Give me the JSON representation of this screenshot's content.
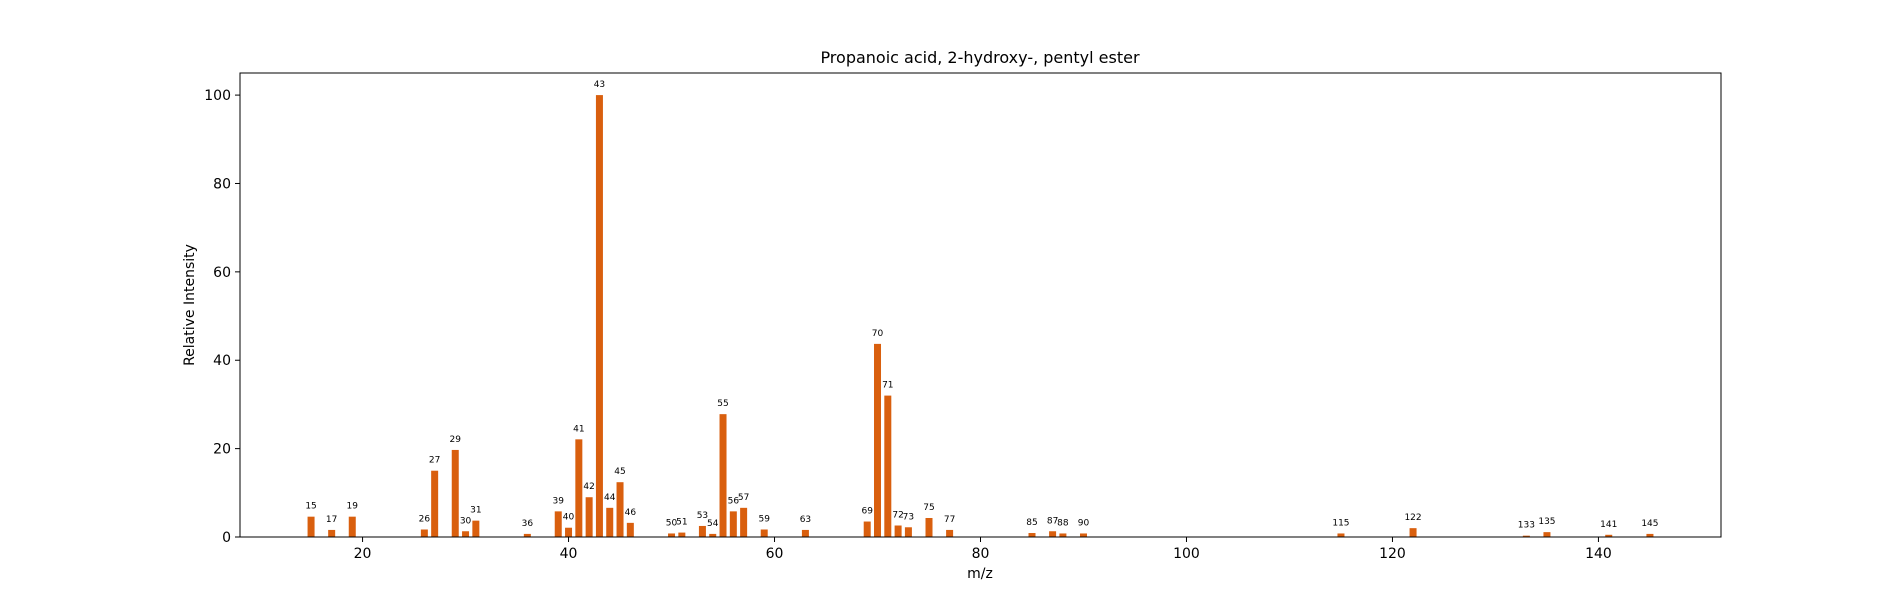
{
  "chart_data": {
    "type": "bar",
    "title": "Propanoic acid, 2-hydroxy-, pentyl ester",
    "xlabel": "m/z",
    "ylabel": "Relative Intensity",
    "xlim": [
      8.1,
      151.9
    ],
    "ylim": [
      0,
      105
    ],
    "xticks": [
      20,
      40,
      60,
      80,
      100,
      120,
      140
    ],
    "yticks": [
      0,
      20,
      40,
      60,
      80,
      100
    ],
    "grid": false,
    "legend": "none",
    "bar_color": "#d95f0e",
    "series": [
      {
        "x": [
          15,
          17,
          19,
          26,
          27,
          29,
          30,
          31,
          36,
          39,
          40,
          41,
          42,
          43,
          44,
          45,
          46,
          50,
          51,
          53,
          54,
          55,
          56,
          57,
          59,
          63,
          69,
          70,
          71,
          72,
          73,
          75,
          77,
          85,
          87,
          88,
          90,
          115,
          122,
          133,
          135,
          141,
          145
        ],
        "values": [
          4.6,
          1.6,
          4.6,
          1.7,
          15.0,
          19.7,
          1.3,
          3.7,
          0.7,
          5.8,
          2.1,
          22.1,
          9.0,
          100.0,
          6.6,
          12.4,
          3.2,
          0.8,
          1.0,
          2.5,
          0.7,
          27.8,
          5.8,
          6.6,
          1.7,
          1.6,
          3.5,
          43.7,
          32.0,
          2.6,
          2.2,
          4.3,
          1.6,
          0.9,
          1.3,
          0.8,
          0.8,
          0.8,
          2.0,
          0.3,
          1.1,
          0.5,
          0.7
        ]
      }
    ]
  }
}
